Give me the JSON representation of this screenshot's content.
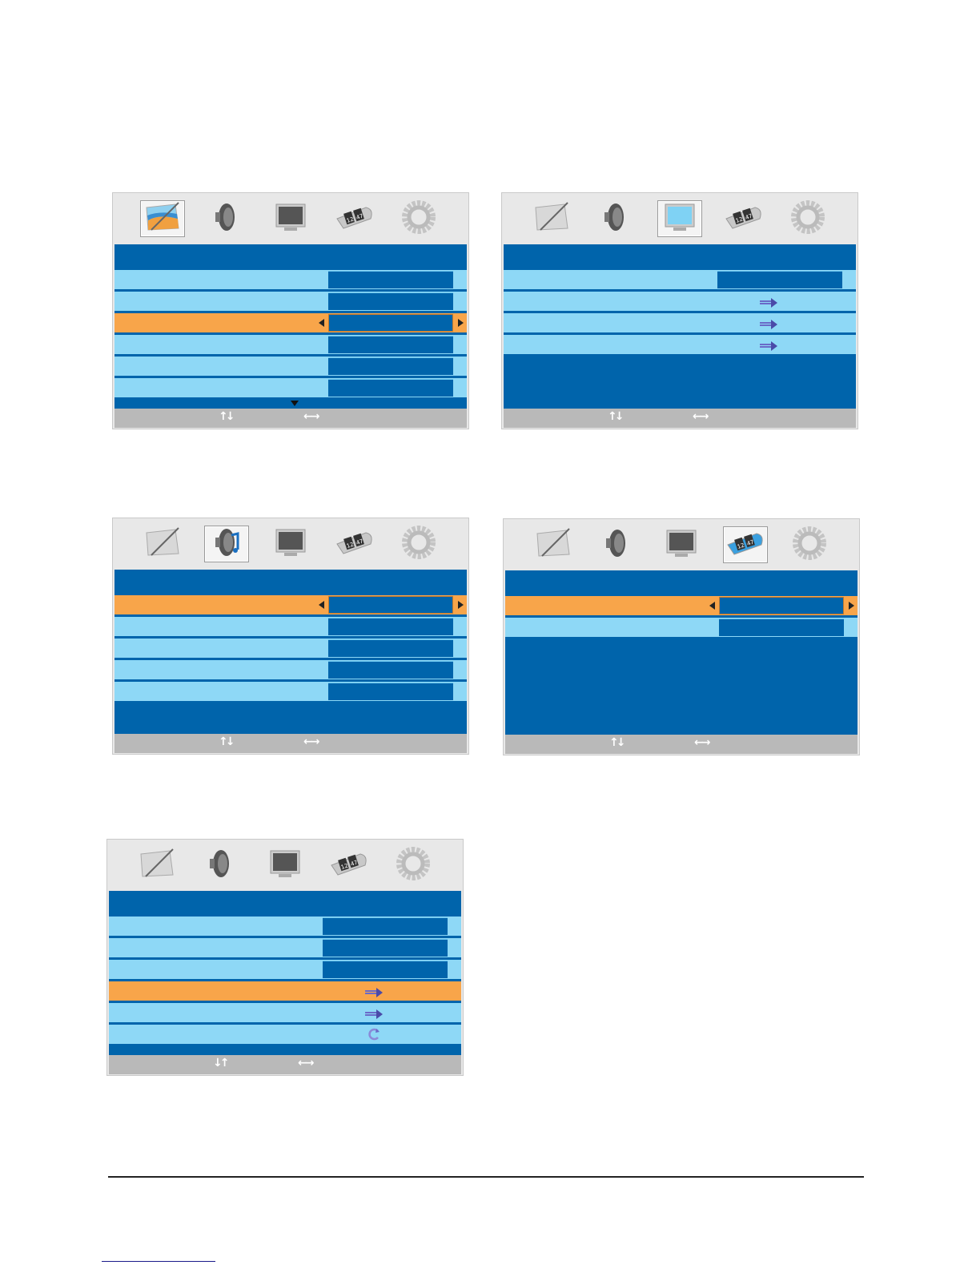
{
  "colors": {
    "menu_blue": "#0064ab",
    "row_light": "#8ed8f6",
    "row_highlight": "#f8a54a",
    "footer_gray": "#b9b9b9",
    "iconbar_gray": "#e8e8e8"
  },
  "tabs": [
    {
      "icon": "picture-icon"
    },
    {
      "icon": "speaker-icon"
    },
    {
      "icon": "monitor-icon"
    },
    {
      "icon": "clock-icon",
      "labels": [
        "12",
        "47"
      ]
    },
    {
      "icon": "gear-icon"
    }
  ],
  "menus": [
    {
      "name": "picture-menu",
      "selected_tab": 0,
      "more_below": true,
      "rows": [
        {
          "type": "value"
        },
        {
          "type": "value"
        },
        {
          "type": "value",
          "highlighted": true
        },
        {
          "type": "value"
        },
        {
          "type": "value"
        },
        {
          "type": "value"
        }
      ],
      "footer": {
        "updown": "↑↓",
        "leftright": "←→"
      }
    },
    {
      "name": "screen-menu",
      "selected_tab": 2,
      "rows": [
        {
          "type": "value"
        },
        {
          "type": "arrow"
        },
        {
          "type": "arrow"
        },
        {
          "type": "arrow"
        }
      ],
      "footer": {
        "updown": "↑↓",
        "leftright": "←→"
      }
    },
    {
      "name": "sound-menu",
      "selected_tab": 1,
      "rows": [
        {
          "type": "value",
          "highlighted": true
        },
        {
          "type": "value"
        },
        {
          "type": "value"
        },
        {
          "type": "value"
        },
        {
          "type": "value"
        }
      ],
      "footer": {
        "updown": "↑↓",
        "leftright": "←→"
      }
    },
    {
      "name": "time-menu",
      "selected_tab": 3,
      "rows": [
        {
          "type": "value",
          "highlighted": true
        },
        {
          "type": "value"
        }
      ],
      "footer": {
        "updown": "↑↓",
        "leftright": "←→"
      }
    },
    {
      "name": "setup-menu",
      "selected_tab": null,
      "rows": [
        {
          "type": "value"
        },
        {
          "type": "value"
        },
        {
          "type": "value"
        },
        {
          "type": "arrow",
          "highlighted": true
        },
        {
          "type": "arrow"
        },
        {
          "type": "refresh"
        }
      ],
      "footer": {
        "updown": "↓↑",
        "leftright": "←→"
      }
    }
  ]
}
